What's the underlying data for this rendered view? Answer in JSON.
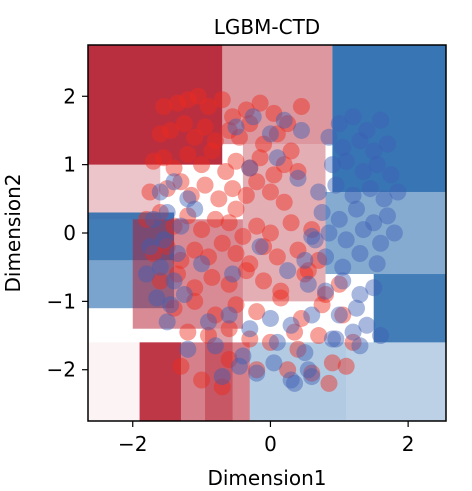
{
  "chart_data": {
    "type": "scatter",
    "title": "LGBM-CTD",
    "xlabel": "Dimension1",
    "ylabel": "Dimension2",
    "xlim": [
      -2.65,
      2.55
    ],
    "ylim": [
      -2.75,
      2.75
    ],
    "xticks": [
      -2,
      0,
      2
    ],
    "yticks": [
      -2,
      -1,
      0,
      1,
      2
    ],
    "xtick_labels": [
      "−2",
      "0",
      "2"
    ],
    "ytick_labels": [
      "−2",
      "−1",
      "0",
      "1",
      "2"
    ],
    "grid": false,
    "legend": "none",
    "colors": {
      "class_a": "#ee2a1c",
      "class_b": "#3f5fb4",
      "region_red": "#b2182b",
      "region_blue": "#2166ac"
    },
    "decision_regions": [
      {
        "x": [
          -2.65,
          -0.7
        ],
        "y": [
          1.0,
          2.75
        ],
        "class": "a",
        "strength": 0.9
      },
      {
        "x": [
          -0.7,
          0.9
        ],
        "y": [
          1.3,
          2.75
        ],
        "class": "a",
        "strength": 0.45
      },
      {
        "x": [
          0.9,
          2.55
        ],
        "y": [
          0.6,
          2.75
        ],
        "class": "b",
        "strength": 0.9
      },
      {
        "x": [
          -2.65,
          -1.6
        ],
        "y": [
          0.2,
          1.0
        ],
        "class": "a",
        "strength": 0.25
      },
      {
        "x": [
          -2.65,
          -1.4
        ],
        "y": [
          -0.4,
          0.3
        ],
        "class": "b",
        "strength": 0.85
      },
      {
        "x": [
          -2.65,
          -1.4
        ],
        "y": [
          -1.1,
          -0.4
        ],
        "class": "b",
        "strength": 0.6
      },
      {
        "x": [
          -2.0,
          -0.4
        ],
        "y": [
          -1.4,
          0.2
        ],
        "class": "a",
        "strength": 0.5
      },
      {
        "x": [
          -0.4,
          0.8
        ],
        "y": [
          -1.0,
          1.3
        ],
        "class": "a",
        "strength": 0.35
      },
      {
        "x": [
          0.8,
          2.55
        ],
        "y": [
          -0.6,
          0.6
        ],
        "class": "b",
        "strength": 0.55
      },
      {
        "x": [
          1.5,
          2.55
        ],
        "y": [
          -1.6,
          -0.6
        ],
        "class": "b",
        "strength": 0.85
      },
      {
        "x": [
          -2.65,
          -1.9
        ],
        "y": [
          -2.75,
          -1.6
        ],
        "class": "a",
        "strength": 0.05
      },
      {
        "x": [
          -1.9,
          -0.3
        ],
        "y": [
          -2.75,
          -1.6
        ],
        "class": "a",
        "strength": 0.55
      },
      {
        "x": [
          -0.3,
          1.1
        ],
        "y": [
          -2.75,
          -1.6
        ],
        "class": "b",
        "strength": 0.35
      },
      {
        "x": [
          1.1,
          2.55
        ],
        "y": [
          -2.75,
          -1.6
        ],
        "class": "b",
        "strength": 0.3
      },
      {
        "x": [
          -1.9,
          -1.3
        ],
        "y": [
          -2.75,
          -1.6
        ],
        "class": "a",
        "strength": 0.7
      },
      {
        "x": [
          -0.95,
          -0.55
        ],
        "y": [
          -2.75,
          -1.4
        ],
        "class": "a",
        "strength": 0.4
      }
    ],
    "series": [
      {
        "class": "a",
        "x": [
          -1.55,
          -1.35,
          -1.2,
          -1.05,
          -0.9,
          -0.7,
          -0.55,
          -0.35,
          -0.15,
          0.05,
          0.25,
          0.45,
          -1.6,
          -1.45,
          -1.25,
          -1.1,
          -0.95,
          -0.8,
          -0.6,
          -0.45,
          -0.3,
          -0.1,
          0.1,
          0.3,
          -1.7,
          -1.55,
          -1.4,
          -1.2,
          -1.0,
          -0.85,
          -0.65,
          -0.5,
          -0.3,
          -0.15,
          0.05,
          0.2,
          0.4,
          -1.75,
          -1.5,
          -1.3,
          -1.15,
          -0.95,
          -0.75,
          -0.55,
          -0.35,
          -0.2,
          0.0,
          0.2,
          -1.8,
          -1.6,
          -1.4,
          -1.2,
          -1.0,
          -0.8,
          -0.6,
          -0.4,
          -0.2,
          0.0,
          0.3,
          0.6,
          -1.7,
          -1.5,
          -1.3,
          -1.1,
          -0.9,
          -0.7,
          -0.5,
          -0.3,
          -0.1,
          0.1,
          0.4,
          0.7,
          -1.6,
          -1.35,
          -1.1,
          -0.85,
          -0.6,
          -0.35,
          -0.1,
          0.15,
          0.5,
          0.8,
          1.0,
          -1.4,
          -1.1,
          -0.8,
          -0.5,
          -0.2,
          0.15,
          0.45,
          0.75,
          1.05,
          -1.2,
          -0.9,
          -0.6,
          -0.3,
          0.0,
          0.35,
          0.7,
          1.2,
          -0.6,
          0.4,
          0.9,
          -1.0,
          -0.2,
          0.6,
          1.1,
          -1.3,
          -0.7,
          0.25,
          0.85,
          -0.5,
          0.55
        ],
        "y": [
          1.85,
          1.9,
          1.95,
          2.0,
          1.85,
          1.95,
          1.7,
          1.8,
          1.9,
          1.75,
          1.6,
          1.85,
          1.45,
          1.5,
          1.6,
          1.4,
          1.55,
          1.35,
          1.5,
          1.4,
          1.6,
          1.3,
          1.45,
          1.2,
          1.05,
          1.1,
          0.95,
          1.15,
          1.0,
          1.2,
          0.9,
          1.05,
          0.95,
          1.1,
          0.85,
          1.0,
          0.9,
          0.6,
          0.65,
          0.75,
          0.55,
          0.7,
          0.5,
          0.65,
          0.55,
          0.75,
          0.6,
          0.45,
          0.2,
          0.3,
          0.1,
          0.25,
          0.05,
          0.2,
          0.15,
          -0.05,
          0.1,
          0.0,
          0.15,
          0.05,
          -0.3,
          -0.2,
          -0.4,
          -0.25,
          -0.35,
          -0.15,
          -0.3,
          -0.45,
          -0.2,
          -0.35,
          -0.25,
          -0.4,
          -0.7,
          -0.6,
          -0.8,
          -0.65,
          -0.75,
          -0.55,
          -0.7,
          -0.85,
          -0.6,
          -0.9,
          -0.75,
          -1.1,
          -1.0,
          -1.2,
          -1.05,
          -1.15,
          -0.95,
          -1.25,
          -1.05,
          -1.2,
          -1.45,
          -1.5,
          -1.4,
          -1.55,
          -1.6,
          -1.45,
          -1.5,
          -1.6,
          -1.85,
          -1.7,
          -1.9,
          -2.15,
          -2.0,
          -2.05,
          -1.95,
          -1.95,
          -2.25,
          -2.0,
          -2.2,
          0.35,
          -0.55
        ]
      },
      {
        "class": "b",
        "x": [
          1.0,
          1.2,
          1.4,
          1.6,
          0.85,
          1.05,
          1.3,
          1.5,
          1.7,
          0.9,
          1.1,
          1.35,
          1.55,
          1.75,
          0.7,
          0.95,
          1.2,
          1.45,
          1.65,
          1.85,
          0.75,
          1.0,
          1.25,
          1.5,
          1.7,
          0.6,
          0.85,
          1.1,
          1.35,
          1.6,
          1.8,
          0.5,
          0.8,
          1.05,
          1.3,
          1.55,
          0.55,
          0.8,
          1.05,
          1.3,
          1.5,
          1.0,
          1.25,
          -1.6,
          -1.4,
          -1.2,
          -1.7,
          -1.5,
          -1.3,
          -1.1,
          -1.75,
          -1.55,
          -1.35,
          -1.8,
          -1.6,
          -1.4,
          -1.65,
          -1.45,
          -1.25,
          -1.5,
          -0.9,
          -0.6,
          -0.3,
          0.0,
          0.3,
          0.6,
          -1.2,
          -0.8,
          -0.4,
          0.1,
          0.5,
          0.9,
          1.3,
          -0.7,
          -0.45,
          -0.2,
          0.05,
          0.3,
          0.55,
          -0.5,
          -0.25,
          0.0,
          0.2,
          0.45,
          -0.3,
          0.1,
          0.4,
          0.95,
          1.2,
          1.4,
          1.6,
          0.35,
          0.6,
          -1.0,
          -0.55,
          -0.15,
          0.25,
          0.65
        ],
        "y": [
          1.6,
          1.7,
          1.5,
          1.65,
          1.4,
          1.25,
          1.35,
          1.2,
          1.3,
          1.0,
          1.05,
          0.9,
          1.0,
          0.85,
          0.6,
          0.7,
          0.55,
          0.65,
          0.5,
          0.6,
          0.3,
          0.2,
          0.35,
          0.15,
          0.25,
          -0.05,
          0.0,
          -0.1,
          0.05,
          -0.15,
          0.0,
          -0.4,
          -0.35,
          -0.5,
          -0.3,
          -0.45,
          -0.75,
          -0.85,
          -0.7,
          -0.9,
          -0.8,
          -1.2,
          -1.1,
          0.6,
          0.75,
          0.5,
          0.2,
          0.3,
          0.1,
          0.35,
          -0.2,
          -0.1,
          -0.3,
          -0.6,
          -0.5,
          -0.7,
          -0.95,
          -1.05,
          -0.9,
          -1.3,
          -1.3,
          -1.2,
          -1.4,
          -1.25,
          -1.35,
          -1.2,
          -1.7,
          -1.65,
          -1.8,
          -1.6,
          -1.75,
          -1.55,
          -1.65,
          -2.1,
          -1.95,
          -2.05,
          -1.9,
          -2.15,
          -2.0,
          1.55,
          1.7,
          1.45,
          1.65,
          1.5,
          0.95,
          1.1,
          0.8,
          -1.55,
          -1.45,
          -1.35,
          -1.5,
          -2.2,
          -2.1,
          -0.45,
          -0.6,
          -0.2,
          -0.55,
          -0.1
        ]
      }
    ]
  }
}
